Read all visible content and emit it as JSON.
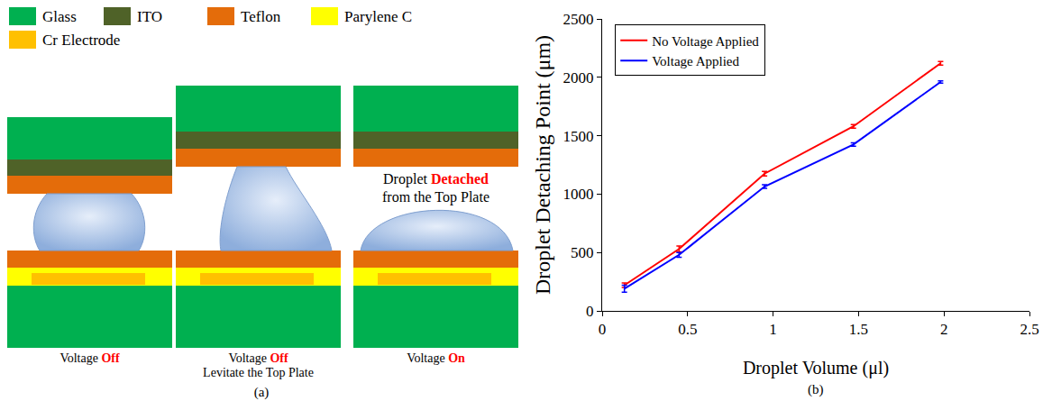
{
  "figure": {
    "labels": [
      "(a)",
      "(b)"
    ]
  },
  "diagram": {
    "legend": [
      {
        "label": "Glass",
        "color": "#00b050"
      },
      {
        "label": "ITO",
        "color": "#4f6228"
      },
      {
        "label": "Teflon",
        "color": "#e46c0a"
      },
      {
        "label": "Parylene C",
        "color": "#ffff00"
      },
      {
        "label": "Cr Electrode",
        "color": "#ffc000"
      }
    ],
    "panels": [
      {
        "caption": [
          [
            {
              "text": "Voltage "
            },
            {
              "text": "Off",
              "emphasis": true
            }
          ]
        ]
      },
      {
        "caption": [
          [
            {
              "text": "Voltage "
            },
            {
              "text": "Off",
              "emphasis": true
            }
          ],
          [
            {
              "text": "Levitate the Top Plate"
            }
          ]
        ]
      },
      {
        "caption": [
          [
            {
              "text": "Voltage "
            },
            {
              "text": "On",
              "emphasis": true
            }
          ]
        ],
        "annotation": [
          [
            {
              "text": "Droplet "
            },
            {
              "text": "Detached",
              "emphasis": true
            }
          ],
          [
            {
              "text": "from the Top Plate"
            }
          ]
        ]
      }
    ]
  },
  "chart_data": {
    "type": "line",
    "x_label": "Droplet Volume (μl)",
    "y_label": "Droplet Detaching Point (μm)",
    "x": [
      0.13,
      0.45,
      0.95,
      1.47,
      1.98
    ],
    "series": [
      {
        "name": "No Voltage Applied",
        "color": "#ff0000",
        "values": [
          220,
          530,
          1175,
          1580,
          2120
        ],
        "error": [
          20,
          25,
          20,
          15,
          15
        ]
      },
      {
        "name": "Voltage Applied",
        "color": "#0000ff",
        "values": [
          190,
          480,
          1065,
          1425,
          1960
        ],
        "error": [
          30,
          20,
          15,
          15,
          10
        ]
      }
    ],
    "xlim": [
      0,
      2.5
    ],
    "xticks": [
      0,
      0.5,
      1,
      1.5,
      2,
      2.5
    ],
    "ylim": [
      0,
      2500
    ],
    "yticks": [
      0,
      500,
      1000,
      1500,
      2000,
      2500
    ],
    "grid": false,
    "legend": "upper left"
  }
}
